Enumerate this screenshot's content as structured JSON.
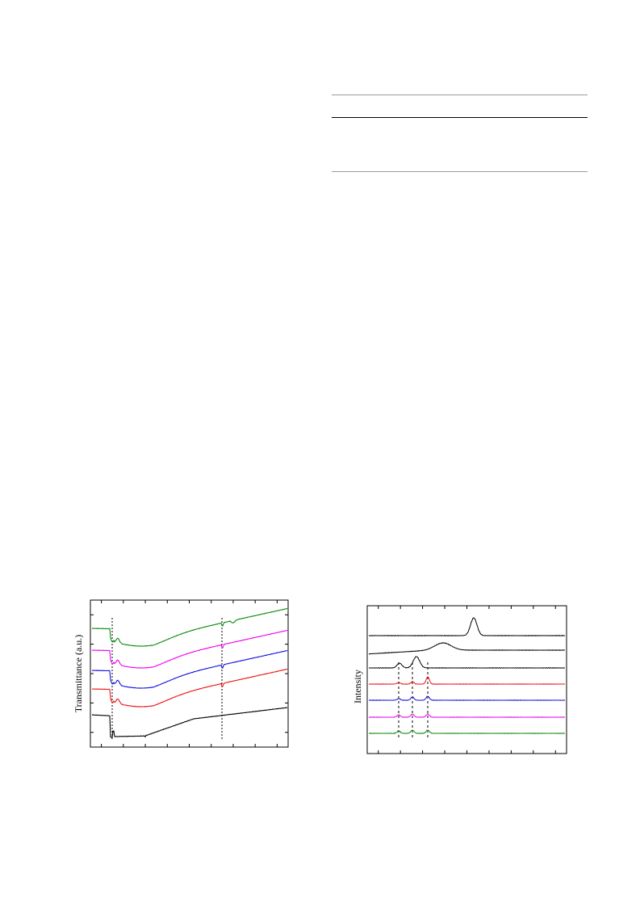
{
  "chart_data": [
    {
      "type": "line",
      "title": "",
      "xlabel": "",
      "ylabel": "Transmittance (a.u.)",
      "ticks": {
        "bottom": 9,
        "top": 9,
        "left": 5,
        "right": 5
      },
      "reference_lines": [
        "dip-1",
        "dip-2"
      ],
      "series": [
        {
          "color": "#0a8a0a"
        },
        {
          "color": "#ee00ee"
        },
        {
          "color": "#1111dd"
        },
        {
          "color": "#ee1111"
        },
        {
          "color": "#000000"
        }
      ]
    },
    {
      "type": "line",
      "title": "",
      "xlabel": "",
      "ylabel": "Intensity",
      "ticks": {
        "bottom": 9,
        "top": 9
      },
      "series": [
        {
          "color": "#000000"
        },
        {
          "color": "#000000"
        },
        {
          "color": "#000000"
        },
        {
          "color": "#ee1111"
        },
        {
          "color": "#1111dd"
        },
        {
          "color": "#ee00ee"
        },
        {
          "color": "#0a8a0a"
        }
      ]
    }
  ]
}
